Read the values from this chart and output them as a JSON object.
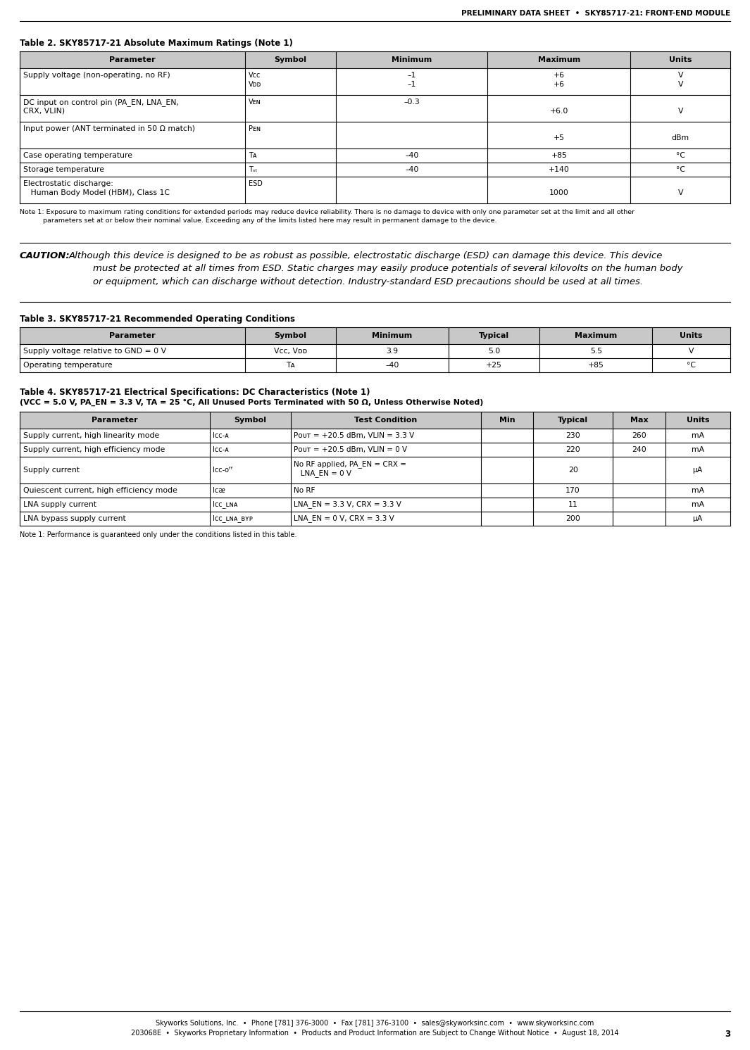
{
  "header_text": "PRELIMINARY DATA SHEET  •  SKY85717-21: FRONT-END MODULE",
  "footer_line1": "Skyworks Solutions, Inc.  •  Phone [781] 376-3000  •  Fax [781] 376-3100  •  sales@skyworksinc.com  •  www.skyworksinc.com",
  "footer_line2": "203068E  •  Skyworks Proprietary Information  •  Products and Product Information are Subject to Change Without Notice  •  August 18, 2014",
  "footer_page": "3",
  "table2_title": "Table 2. SKY85717-21 Absolute Maximum Ratings (Note 1)",
  "table2_headers": [
    "Parameter",
    "Symbol",
    "Minimum",
    "Maximum",
    "Units"
  ],
  "table3_title": "Table 3. SKY85717-21 Recommended Operating Conditions",
  "table3_headers": [
    "Parameter",
    "Symbol",
    "Minimum",
    "Typical",
    "Maximum",
    "Units"
  ],
  "table4_title": "Table 4. SKY85717-21 Electrical Specifications: DC Characteristics (Note 1)",
  "table4_subtitle": "(VCC = 5.0 V, PA_EN = 3.3 V, TA = 25 °C, All Unused Ports Terminated with 50 Ω, Unless Otherwise Noted)",
  "table4_headers": [
    "Parameter",
    "Symbol",
    "Test Condition",
    "Min",
    "Typical",
    "Max",
    "Units"
  ],
  "note1_text": "Note 1: Exposure to maximum rating conditions for extended periods may reduce device reliability. There is no damage to device with only one parameter set at the limit and all other\n           parameters set at or below their nominal value. Exceeding any of the limits listed here may result in permanent damage to the device.",
  "note2_text": "Note 1: Performance is guaranteed only under the conditions listed in this table.",
  "caution_label": "CAUTION:",
  "caution_body": "Although this device is designed to be as robust as possible, electrostatic discharge (ESD) can damage this device. This device\n        must be protected at all times from ESD. Static charges may easily produce potentials of several kilovolts on the human body\n        or equipment, which can discharge without detection. Industry-standard ESD precautions should be used at all times.",
  "bg_color": "#ffffff"
}
